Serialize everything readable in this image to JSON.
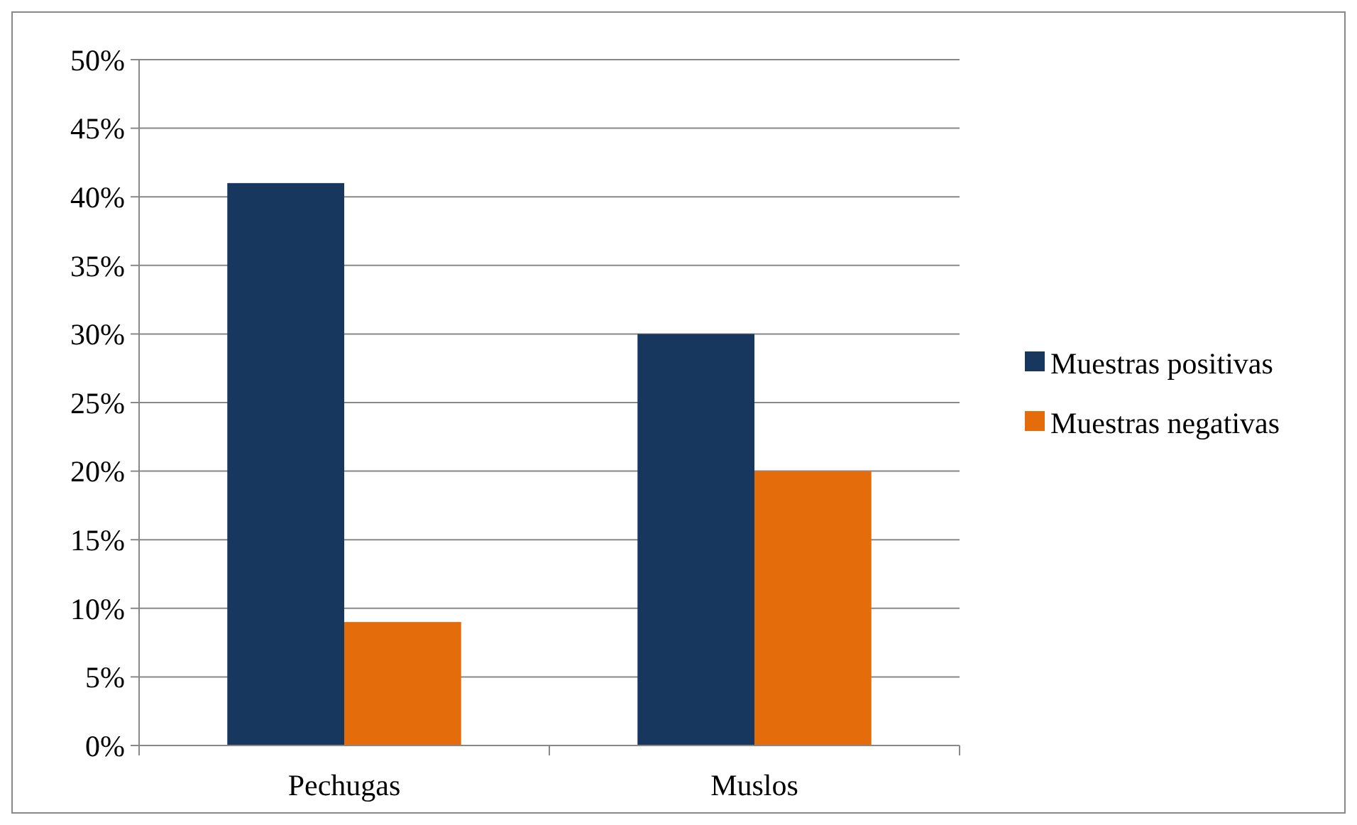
{
  "chart_data": {
    "type": "bar",
    "categories": [
      "Pechugas",
      "Muslos"
    ],
    "series": [
      {
        "name": "Muestras positivas",
        "color": "#17375e",
        "values": [
          41,
          30
        ]
      },
      {
        "name": "Muestras negativas",
        "color": "#e46c0a",
        "values": [
          9,
          20
        ]
      }
    ],
    "ylim": [
      0,
      50
    ],
    "yticks": [
      {
        "value": 0,
        "label": "0%"
      },
      {
        "value": 5,
        "label": "5%"
      },
      {
        "value": 10,
        "label": "10%"
      },
      {
        "value": 15,
        "label": "15%"
      },
      {
        "value": 20,
        "label": "20%"
      },
      {
        "value": 25,
        "label": "25%"
      },
      {
        "value": 30,
        "label": "30%"
      },
      {
        "value": 35,
        "label": "35%"
      },
      {
        "value": 40,
        "label": "40%"
      },
      {
        "value": 45,
        "label": "45%"
      },
      {
        "value": 50,
        "label": "50%"
      }
    ],
    "grid": "y",
    "legend": "right"
  }
}
